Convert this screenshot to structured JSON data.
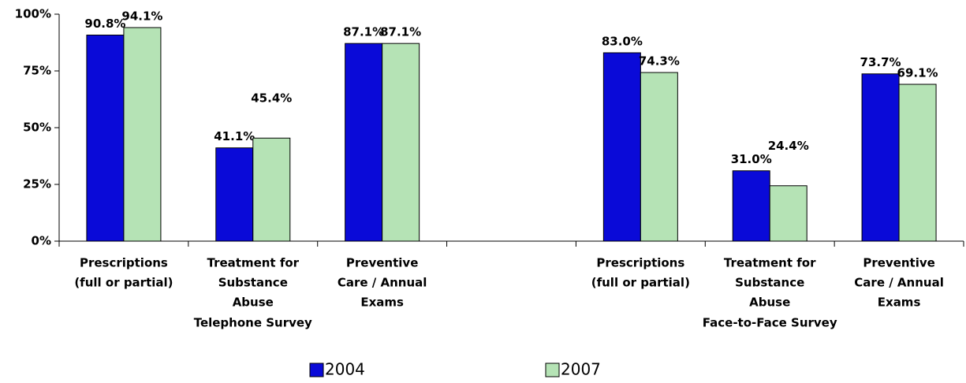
{
  "chart_data": {
    "type": "bar",
    "categories": [
      [
        "Prescriptions",
        "(full or partial)"
      ],
      [
        "Treatment for",
        "Substance",
        "Abuse"
      ],
      [
        "Preventive",
        "Care / Annual",
        "Exams"
      ],
      null,
      [
        "Prescriptions",
        "(full or partial)"
      ],
      [
        "Treatment for",
        "Substance",
        "Abuse"
      ],
      [
        "Preventive",
        "Care / Annual",
        "Exams"
      ]
    ],
    "group_labels": [
      "Telephone Survey",
      "Face-to-Face Survey"
    ],
    "series": [
      {
        "name": "2004",
        "color": "#0a0ad8",
        "values": [
          90.8,
          41.1,
          87.1,
          null,
          83.0,
          31.0,
          73.7
        ],
        "value_labels": [
          "90.8%",
          "41.1%",
          "87.1%",
          null,
          "83.0%",
          "31.0%",
          "73.7%"
        ]
      },
      {
        "name": "2007",
        "color": "#b5e3b5",
        "values": [
          94.1,
          45.4,
          87.1,
          null,
          74.3,
          24.4,
          69.1
        ],
        "value_labels": [
          "94.1%",
          "45.4%",
          "87.1%",
          null,
          "74.3%",
          "24.4%",
          "69.1%"
        ]
      }
    ],
    "ylim": [
      0,
      100
    ],
    "yticks": [
      {
        "value": 0,
        "label": "0%"
      },
      {
        "value": 25,
        "label": "25%"
      },
      {
        "value": 50,
        "label": "50%"
      },
      {
        "value": 75,
        "label": "75%"
      },
      {
        "value": 100,
        "label": "100%"
      }
    ]
  }
}
